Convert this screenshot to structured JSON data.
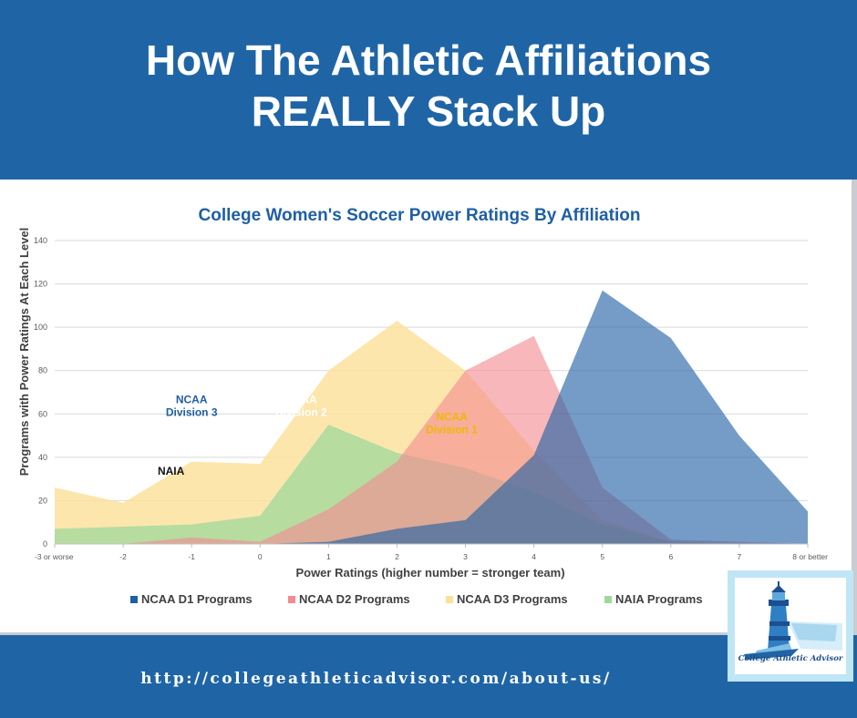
{
  "banner": {
    "title_line1": "How The Athletic Affiliations",
    "title_line2": "REALLY Stack Up",
    "background": "#1f65a6"
  },
  "footer": {
    "url": "http://collegeathleticadvisor.com/about-us/"
  },
  "logo": {
    "text": "College Athletic Advisor",
    "icon": "lighthouse-icon"
  },
  "chart_data": {
    "type": "area",
    "title": "College Women's Soccer Power Ratings By Affiliation",
    "xlabel": "Power Ratings (higher number = stronger team)",
    "ylabel": "Programs with Power Ratings At Each Level",
    "categories": [
      "-3 or worse",
      "-2",
      "-1",
      "0",
      "1",
      "2",
      "3",
      "4",
      "5",
      "6",
      "7",
      "8 or better"
    ],
    "ylim": [
      0,
      140
    ],
    "yticks": [
      0,
      20,
      40,
      60,
      80,
      100,
      120,
      140
    ],
    "grid": true,
    "legend_position": "bottom",
    "series": [
      {
        "name": "NCAA D1 Programs",
        "color": "#1f5fa3",
        "values": [
          0,
          0,
          0,
          0,
          1,
          7,
          11,
          41,
          117,
          95,
          50,
          15
        ]
      },
      {
        "name": "NCAA D2 Programs",
        "color": "#f48a92",
        "values": [
          0,
          0,
          3,
          1,
          16,
          38,
          80,
          96,
          26,
          2,
          1,
          0
        ]
      },
      {
        "name": "NCAA D3 Programs",
        "color": "#fbe09a",
        "values": [
          26,
          19,
          38,
          37,
          80,
          103,
          80,
          43,
          11,
          1,
          0,
          0
        ]
      },
      {
        "name": "NAIA Programs",
        "color": "#9fd89c",
        "values": [
          7,
          8,
          9,
          13,
          55,
          42,
          35,
          24,
          9,
          1,
          0,
          0
        ]
      }
    ],
    "annotations": [
      {
        "text": "NCAA Division 3",
        "lines": [
          "NCAA",
          "Division 3"
        ],
        "x": 2,
        "y": 65,
        "color": "#1f5fa3"
      },
      {
        "text": "NCAA Division 2",
        "lines": [
          "NCAA",
          "Division 2"
        ],
        "x": 3.6,
        "y": 65,
        "color": "#ffffff"
      },
      {
        "text": "NCAA Division 1",
        "lines": [
          "NCAA",
          "Division 1"
        ],
        "x": 5.8,
        "y": 57,
        "color": "#f2b800"
      },
      {
        "text": "NAIA",
        "lines": [
          "NAIA"
        ],
        "x": 1.7,
        "y": 32,
        "color": "#111111"
      }
    ]
  }
}
